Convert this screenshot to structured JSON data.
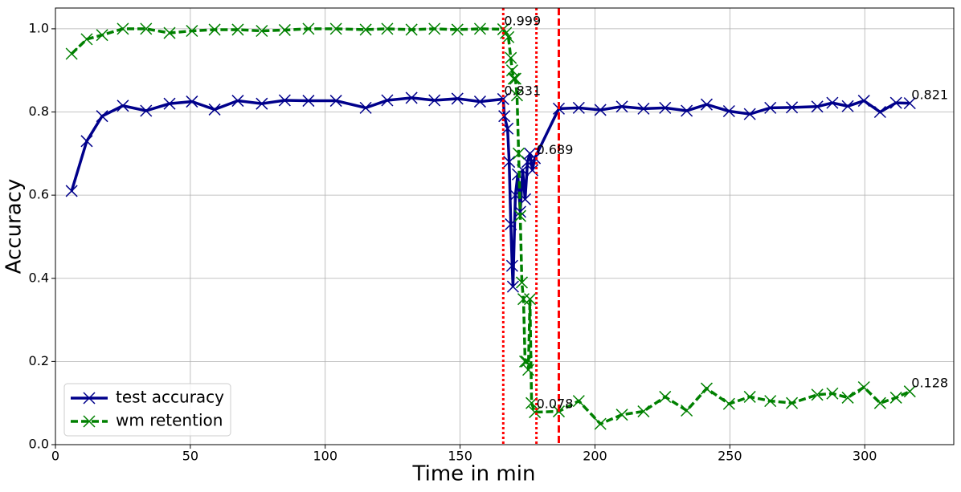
{
  "chart_data": {
    "type": "line",
    "xlabel": "Time in min",
    "ylabel": "Accuracy",
    "xlim": [
      0,
      333
    ],
    "ylim": [
      0,
      1.05
    ],
    "xticks": [
      0,
      50,
      100,
      150,
      200,
      250,
      300
    ],
    "yticks": [
      {
        "value": 0,
        "label": "0.0"
      },
      0.2,
      0.4,
      0.6,
      0.8,
      {
        "value": 1,
        "label": "1.0"
      }
    ],
    "grid": true,
    "legend": "lower left",
    "series": [
      {
        "name": "test accuracy",
        "color": "#00008b",
        "linestyle": "solid",
        "marker": "x",
        "x": [
          6,
          11.6,
          17.3,
          25,
          33.6,
          42.3,
          50.6,
          59,
          67.6,
          76.5,
          85,
          93.8,
          104,
          115,
          123,
          132,
          140.5,
          149,
          157.4,
          166,
          166.4,
          167.6,
          168.2,
          168.8,
          169.3,
          169.6,
          170.5,
          171.4,
          172.3,
          173.2,
          174.1,
          175,
          175.9,
          176.8,
          177.7,
          186.6,
          194,
          202,
          210,
          218,
          226,
          234,
          241.4,
          249.7,
          257.4,
          265,
          273,
          282.4,
          288,
          293.7,
          299.7,
          305.7,
          311.6,
          316.7
        ],
        "values": [
          0.61,
          0.73,
          0.79,
          0.815,
          0.803,
          0.82,
          0.825,
          0.806,
          0.827,
          0.82,
          0.828,
          0.827,
          0.827,
          0.81,
          0.828,
          0.834,
          0.828,
          0.832,
          0.825,
          0.831,
          0.79,
          0.76,
          0.68,
          0.53,
          0.43,
          0.38,
          0.6,
          0.65,
          0.56,
          0.66,
          0.59,
          0.68,
          0.7,
          0.66,
          0.689,
          0.808,
          0.81,
          0.805,
          0.813,
          0.808,
          0.81,
          0.803,
          0.818,
          0.802,
          0.795,
          0.81,
          0.811,
          0.813,
          0.822,
          0.814,
          0.827,
          0.8,
          0.822,
          0.821
        ]
      },
      {
        "name": "wm retention",
        "color": "#008000",
        "linestyle": "dashed",
        "marker": "x",
        "x": [
          6,
          11.6,
          17.3,
          25,
          33.6,
          42.3,
          50.6,
          59,
          67.6,
          76.5,
          85,
          93.8,
          104,
          115,
          123,
          132,
          140.5,
          149,
          157.4,
          166,
          167,
          167.9,
          168.8,
          169.3,
          169.9,
          170.5,
          171.1,
          171.7,
          172.3,
          172.9,
          173.5,
          174.1,
          174.7,
          175.3,
          175.9,
          176.5,
          177.7,
          186.6,
          194,
          202,
          210,
          218,
          226,
          234,
          241.4,
          249.7,
          257.4,
          265,
          273,
          282.4,
          288,
          293.7,
          299.7,
          305.7,
          311.6,
          316.7
        ],
        "values": [
          0.94,
          0.975,
          0.985,
          1.0,
          1.0,
          0.99,
          0.995,
          0.998,
          0.998,
          0.995,
          0.997,
          1.0,
          1.0,
          0.998,
          1.0,
          0.998,
          1.0,
          0.998,
          1.0,
          0.999,
          0.99,
          0.98,
          0.93,
          0.9,
          0.88,
          0.88,
          0.84,
          0.7,
          0.55,
          0.39,
          0.35,
          0.2,
          0.2,
          0.18,
          0.35,
          0.1,
          0.078,
          0.08,
          0.105,
          0.05,
          0.072,
          0.08,
          0.115,
          0.082,
          0.135,
          0.098,
          0.115,
          0.105,
          0.1,
          0.12,
          0.123,
          0.113,
          0.138,
          0.1,
          0.113,
          0.128
        ]
      }
    ],
    "vlines": [
      {
        "x": 166,
        "color": "#ff0000",
        "linestyle": "dotted"
      },
      {
        "x": 178.3,
        "color": "#ff0000",
        "linestyle": "dotted"
      },
      {
        "x": 186.6,
        "color": "#ff0000",
        "linestyle": "dashed"
      }
    ],
    "annotations": [
      {
        "text": "0.999",
        "x": 166,
        "y": 0.999
      },
      {
        "text": "0.831",
        "x": 166,
        "y": 0.831
      },
      {
        "text": "0.689",
        "x": 178,
        "y": 0.689
      },
      {
        "text": "0.078",
        "x": 178,
        "y": 0.078
      },
      {
        "text": "0.821",
        "x": 317,
        "y": 0.821
      },
      {
        "text": "0.128",
        "x": 317,
        "y": 0.128
      }
    ]
  }
}
